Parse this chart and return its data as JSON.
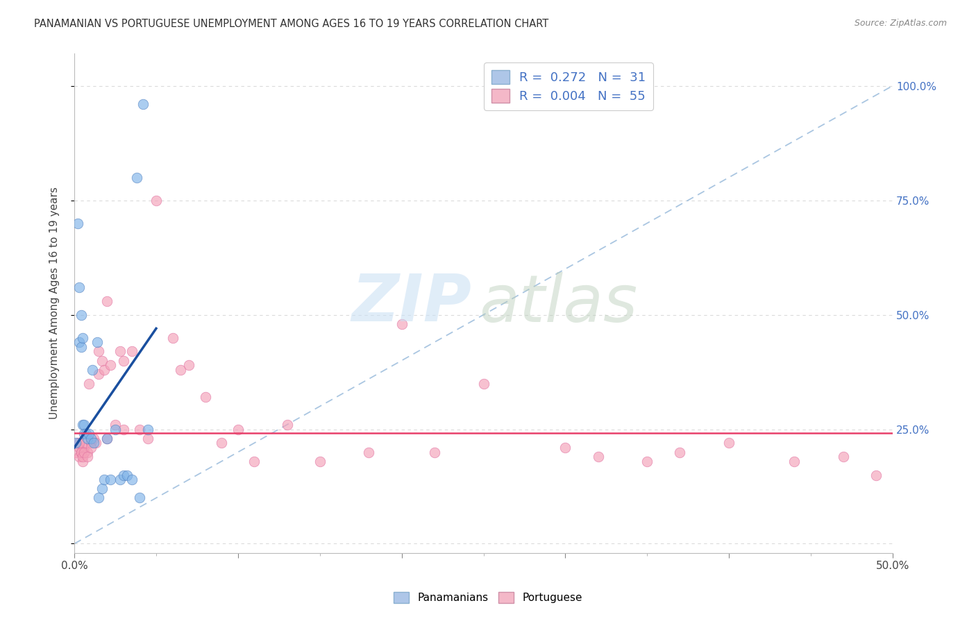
{
  "title": "PANAMANIAN VS PORTUGUESE UNEMPLOYMENT AMONG AGES 16 TO 19 YEARS CORRELATION CHART",
  "source": "Source: ZipAtlas.com",
  "ylabel": "Unemployment Among Ages 16 to 19 years",
  "xlim": [
    0.0,
    0.5
  ],
  "ylim": [
    -0.02,
    1.07
  ],
  "legend_r1": "R =  0.272   N =  31",
  "legend_r2": "R =  0.004   N =  55",
  "legend_color1": "#aec6e8",
  "legend_color2": "#f4b8c8",
  "pan_x": [
    0.001,
    0.002,
    0.003,
    0.003,
    0.004,
    0.004,
    0.005,
    0.005,
    0.006,
    0.006,
    0.007,
    0.008,
    0.009,
    0.01,
    0.011,
    0.012,
    0.014,
    0.015,
    0.017,
    0.018,
    0.02,
    0.022,
    0.025,
    0.028,
    0.03,
    0.032,
    0.035,
    0.038,
    0.04,
    0.042,
    0.045
  ],
  "pan_y": [
    0.22,
    0.7,
    0.56,
    0.44,
    0.5,
    0.43,
    0.45,
    0.26,
    0.26,
    0.24,
    0.24,
    0.23,
    0.24,
    0.23,
    0.38,
    0.22,
    0.44,
    0.1,
    0.12,
    0.14,
    0.23,
    0.14,
    0.25,
    0.14,
    0.15,
    0.15,
    0.14,
    0.8,
    0.1,
    0.96,
    0.25
  ],
  "por_x": [
    0.001,
    0.002,
    0.003,
    0.003,
    0.004,
    0.005,
    0.006,
    0.007,
    0.008,
    0.009,
    0.01,
    0.012,
    0.013,
    0.015,
    0.017,
    0.018,
    0.02,
    0.022,
    0.025,
    0.028,
    0.03,
    0.035,
    0.04,
    0.045,
    0.05,
    0.06,
    0.065,
    0.07,
    0.08,
    0.09,
    0.1,
    0.11,
    0.13,
    0.15,
    0.18,
    0.2,
    0.22,
    0.25,
    0.3,
    0.32,
    0.35,
    0.37,
    0.4,
    0.44,
    0.47,
    0.49,
    0.003,
    0.004,
    0.005,
    0.006,
    0.008,
    0.01,
    0.015,
    0.02,
    0.03
  ],
  "por_y": [
    0.2,
    0.22,
    0.21,
    0.19,
    0.2,
    0.18,
    0.21,
    0.22,
    0.2,
    0.35,
    0.22,
    0.23,
    0.22,
    0.37,
    0.4,
    0.38,
    0.53,
    0.39,
    0.26,
    0.42,
    0.25,
    0.42,
    0.25,
    0.23,
    0.75,
    0.45,
    0.38,
    0.39,
    0.32,
    0.22,
    0.25,
    0.18,
    0.26,
    0.18,
    0.2,
    0.48,
    0.2,
    0.35,
    0.21,
    0.19,
    0.18,
    0.2,
    0.22,
    0.18,
    0.19,
    0.15,
    0.22,
    0.2,
    0.19,
    0.2,
    0.19,
    0.21,
    0.42,
    0.23,
    0.4
  ],
  "blue_line_x": [
    0.0,
    0.05
  ],
  "blue_line_y": [
    0.21,
    0.47
  ],
  "pink_line_y": 0.242,
  "ref_line_x": [
    0.0,
    0.5
  ],
  "ref_line_y": [
    0.0,
    1.0
  ],
  "scatter_size": 110,
  "scatter_alpha": 0.65,
  "blue_color": "#7fb3e8",
  "pink_color": "#f4a0b8",
  "blue_edge": "#5080c0",
  "pink_edge": "#e070a0",
  "grid_color": "#cccccc",
  "bg_color": "#ffffff",
  "blue_line_color": "#1a4f9f",
  "pink_line_color": "#e8406a",
  "ref_line_color": "#9bbcdc",
  "right_tick_color": "#4472c4",
  "title_color": "#333333",
  "source_color": "#888888"
}
